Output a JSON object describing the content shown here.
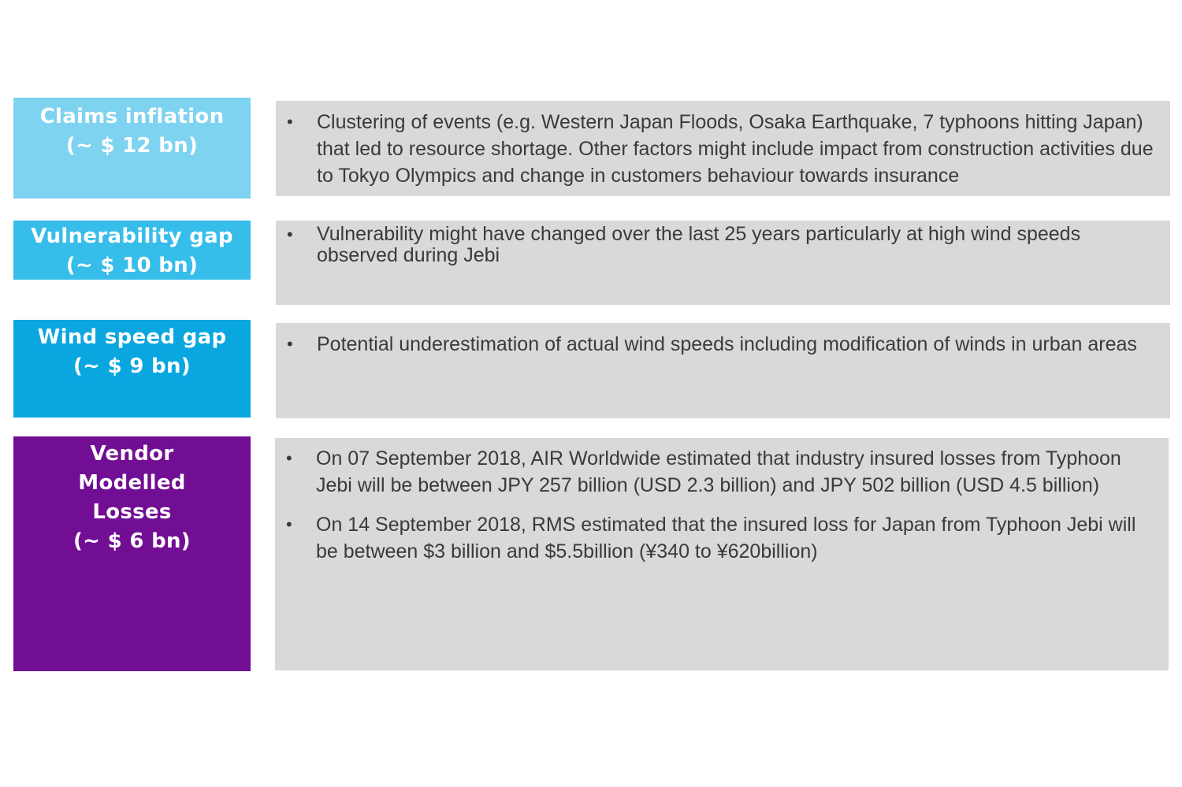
{
  "rows": [
    {
      "label_lines": [
        "Claims inflation",
        "(~ $ 12 bn)"
      ],
      "color": "#7dd3f0",
      "bullets": [
        "Clustering of events (e.g. Western Japan Floods, Osaka Earthquake, 7 typhoons hitting Japan) that led to resource shortage. Other factors might include impact from construction activities due to Tokyo Olympics and change in customers behaviour towards insurance"
      ]
    },
    {
      "label_lines": [
        "Vulnerability gap",
        "(~ $ 10 bn)"
      ],
      "color": "#36bdea",
      "bullets": [
        "Vulnerability might have changed over the last 25 years particularly at high wind speeds observed during Jebi"
      ]
    },
    {
      "label_lines": [
        "Wind speed gap",
        "(~ $ 9 bn)"
      ],
      "color": "#0aa6e0",
      "bullets": [
        "Potential underestimation of actual wind speeds including modification of winds in urban areas"
      ]
    },
    {
      "label_lines": [
        "Vendor",
        "Modelled",
        "Losses",
        "(~ $ 6 bn)"
      ],
      "color": "#720e93",
      "bullets": [
        "On 07 September 2018, AIR Worldwide estimated that industry insured losses from Typhoon Jebi will be between JPY 257 billion (USD 2.3 billion) and JPY 502 billion (USD 4.5 billion)",
        "On 14 September 2018, RMS estimated that the insured loss for Japan from Typhoon Jebi will be between $3 billion and $5.5billion (¥340 to ¥620billion)"
      ]
    }
  ],
  "bullet_symbol": "•"
}
